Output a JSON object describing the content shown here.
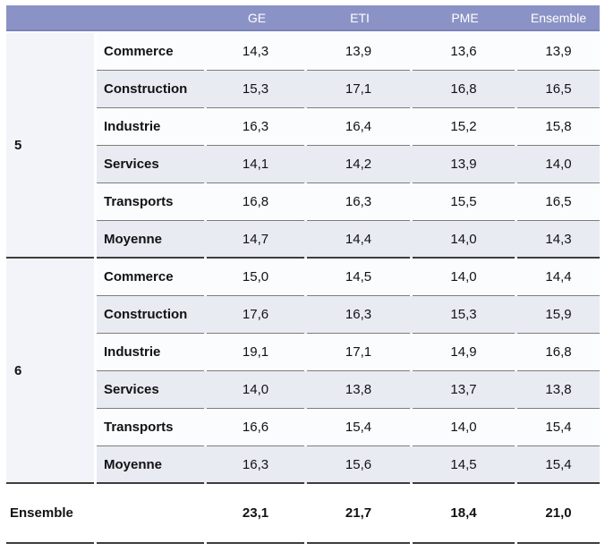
{
  "colors": {
    "header_band": "#8b93c6",
    "header_band_edge": "#7a83b8",
    "row_alt": "#e9ebf3",
    "row_plain": "#fbfcfe",
    "group_column": "#f3f4f9",
    "thin_rule": "#7d7d7d",
    "dark_rule": "#3d3d3d",
    "header_text": "#ffffff",
    "body_text": "#121212"
  },
  "chart_data": {
    "type": "table",
    "columns": [
      "GE",
      "ETI",
      "PME",
      "Ensemble"
    ],
    "groups": [
      {
        "label": "5",
        "rows": [
          {
            "sector": "Commerce",
            "values": [
              "14,3",
              "13,9",
              "13,6",
              "13,9"
            ]
          },
          {
            "sector": "Construction",
            "values": [
              "15,3",
              "17,1",
              "16,8",
              "16,5"
            ]
          },
          {
            "sector": "Industrie",
            "values": [
              "16,3",
              "16,4",
              "15,2",
              "15,8"
            ]
          },
          {
            "sector": "Services",
            "values": [
              "14,1",
              "14,2",
              "13,9",
              "14,0"
            ]
          },
          {
            "sector": "Transports",
            "values": [
              "16,8",
              "16,3",
              "15,5",
              "16,5"
            ]
          },
          {
            "sector": "Moyenne",
            "values": [
              "14,7",
              "14,4",
              "14,0",
              "14,3"
            ]
          }
        ]
      },
      {
        "label": "6",
        "rows": [
          {
            "sector": "Commerce",
            "values": [
              "15,0",
              "14,5",
              "14,0",
              "14,4"
            ]
          },
          {
            "sector": "Construction",
            "values": [
              "17,6",
              "16,3",
              "15,3",
              "15,9"
            ]
          },
          {
            "sector": "Industrie",
            "values": [
              "19,1",
              "17,1",
              "14,9",
              "16,8"
            ]
          },
          {
            "sector": "Services",
            "values": [
              "14,0",
              "13,8",
              "13,7",
              "13,8"
            ]
          },
          {
            "sector": "Transports",
            "values": [
              "16,6",
              "15,4",
              "14,0",
              "15,4"
            ]
          },
          {
            "sector": "Moyenne",
            "values": [
              "16,3",
              "15,6",
              "14,5",
              "15,4"
            ]
          }
        ]
      }
    ],
    "total_row": {
      "label": "Ensemble",
      "values": [
        "23,1",
        "21,7",
        "18,4",
        "21,0"
      ]
    }
  }
}
